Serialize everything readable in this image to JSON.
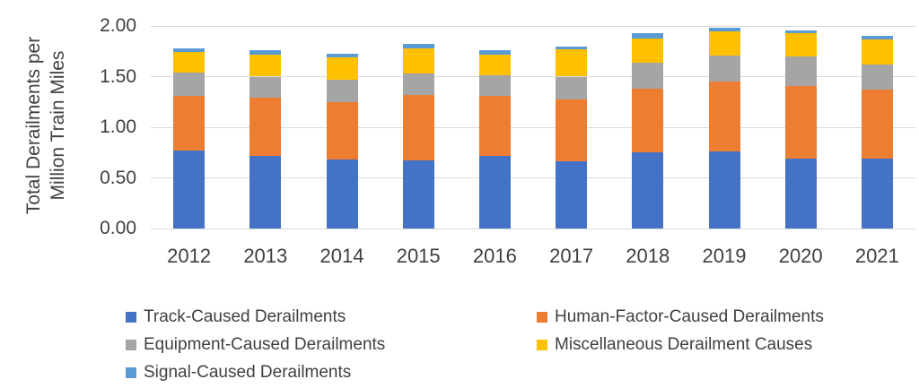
{
  "chart_data": {
    "type": "bar",
    "stacked": true,
    "title": "",
    "xlabel": "",
    "ylabel": "Total Derailments per Million Train Miles",
    "ylabel_lines": [
      "Total Derailments per",
      "Million Train Miles"
    ],
    "ylim": [
      0,
      2.0
    ],
    "ytick_step": 0.5,
    "ytick_labels": [
      "0.00",
      "0.50",
      "1.00",
      "1.50",
      "2.00"
    ],
    "grid": true,
    "grid_color": "#d9d9d9",
    "text_color": "#404040",
    "background_color": "#ffffff",
    "legend_position": "bottom",
    "legend_columns": 2,
    "categories": [
      "2012",
      "2013",
      "2014",
      "2015",
      "2016",
      "2017",
      "2018",
      "2019",
      "2020",
      "2021"
    ],
    "series": [
      {
        "key": "track",
        "name": "Track-Caused Derailments",
        "color": "#4472c4",
        "values": [
          0.77,
          0.72,
          0.68,
          0.67,
          0.72,
          0.66,
          0.75,
          0.76,
          0.69,
          0.69
        ]
      },
      {
        "key": "human_factor",
        "name": "Human-Factor-Caused Derailments",
        "color": "#ed7d31",
        "values": [
          0.54,
          0.57,
          0.57,
          0.65,
          0.59,
          0.61,
          0.63,
          0.69,
          0.72,
          0.68
        ]
      },
      {
        "key": "equipment",
        "name": "Equipment-Caused Derailments",
        "color": "#a5a5a5",
        "values": [
          0.23,
          0.21,
          0.22,
          0.21,
          0.2,
          0.23,
          0.26,
          0.26,
          0.29,
          0.25
        ]
      },
      {
        "key": "miscellaneous",
        "name": "Miscellaneous Derailment Causes",
        "color": "#ffc000",
        "values": [
          0.2,
          0.22,
          0.22,
          0.25,
          0.21,
          0.27,
          0.24,
          0.24,
          0.23,
          0.25
        ]
      },
      {
        "key": "signal",
        "name": "Signal-Caused Derailments",
        "color": "#5b9bd5",
        "values": [
          0.04,
          0.04,
          0.04,
          0.04,
          0.04,
          0.03,
          0.05,
          0.03,
          0.03,
          0.03
        ]
      }
    ]
  }
}
